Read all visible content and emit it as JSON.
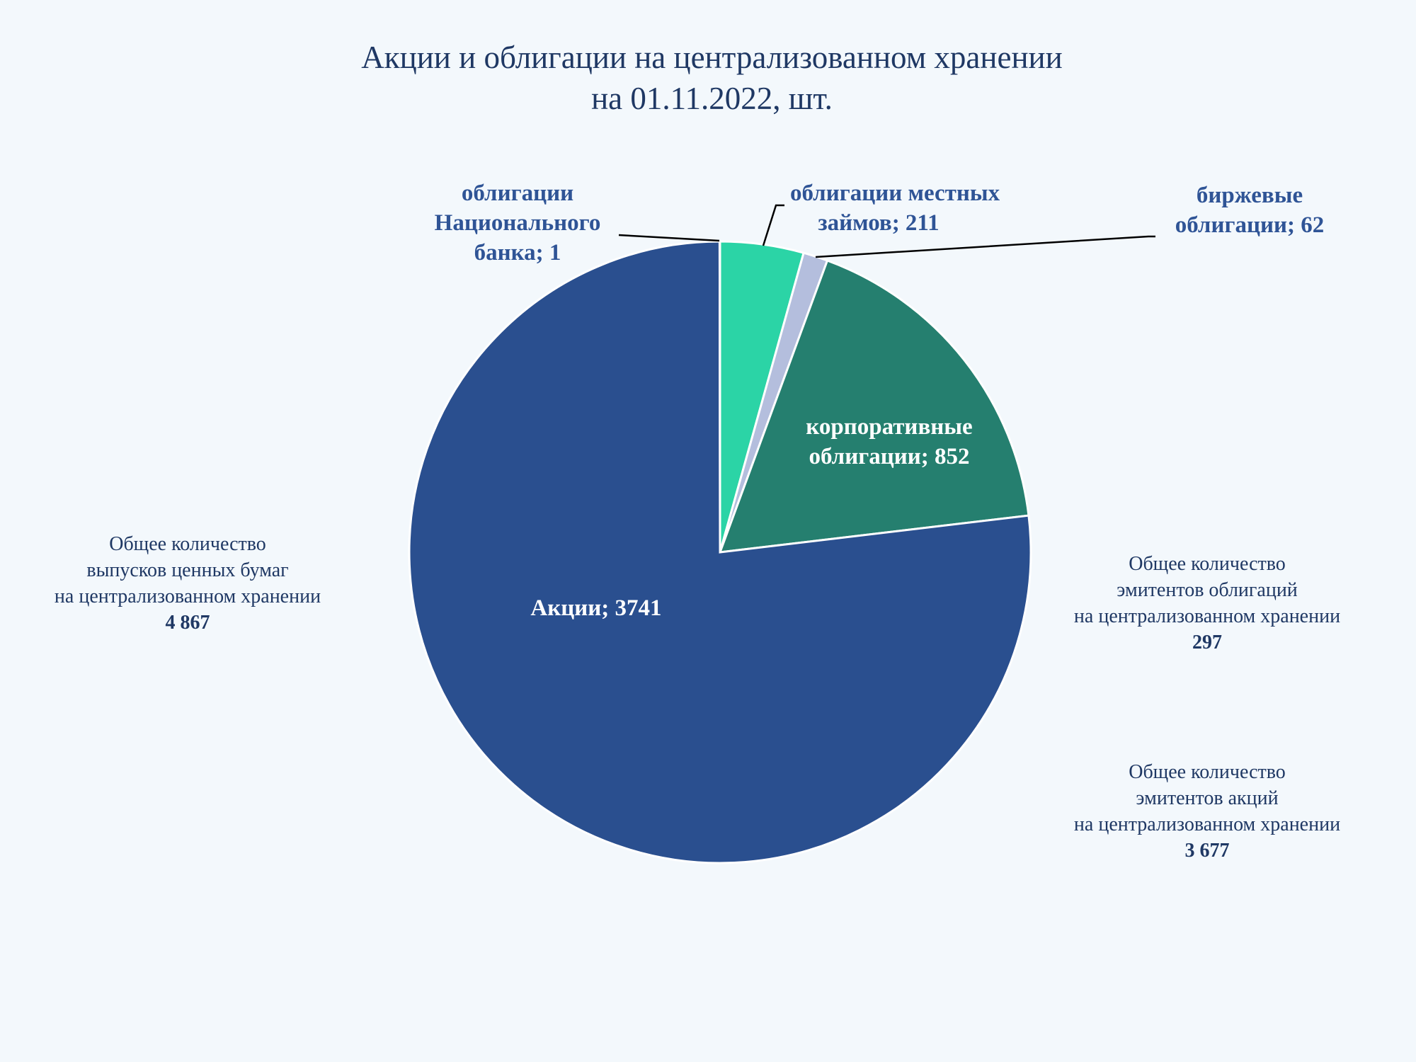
{
  "chart_data": {
    "type": "pie",
    "title": [
      "Акции и облигации на централизованном хранении",
      "на 01.11.2022, шт."
    ],
    "start_angle_deg": 0,
    "direction": "clockwise",
    "slices": [
      {
        "label": "облигации местных займов",
        "text": [
          "облигации местных",
          "займов; 211"
        ],
        "value": 211,
        "color": "#2bd4a6",
        "label_pos": "outside"
      },
      {
        "label": "биржевые облигации",
        "text": [
          "биржевые",
          "облигации; 62"
        ],
        "value": 62,
        "color": "#b4bedd",
        "label_pos": "outside"
      },
      {
        "label": "корпоративные облигации",
        "text": [
          "корпоративные",
          "облигации; 852"
        ],
        "value": 852,
        "color": "#257f6f",
        "label_pos": "inside"
      },
      {
        "label": "Акции",
        "text": [
          "Акции; 3741"
        ],
        "value": 3741,
        "color": "#2a4f8f",
        "label_pos": "inside"
      },
      {
        "label": "облигации Национального банка",
        "text": [
          "облигации",
          "Национального",
          "банка; 1"
        ],
        "value": 1,
        "color": "#2a4f8f",
        "label_pos": "outside"
      }
    ]
  },
  "stats": {
    "total_issues": {
      "lines": [
        "Общее количество",
        "выпусков ценных бумаг",
        "на централизованном хранении"
      ],
      "value": "4 867"
    },
    "bond_issuers": {
      "lines": [
        "Общее количество",
        "эмитентов облигаций",
        "на централизованном хранении"
      ],
      "value": "297"
    },
    "share_issuers": {
      "lines": [
        "Общее количество",
        "эмитентов акций",
        "на централизованном хранении"
      ],
      "value": "3 677"
    }
  }
}
